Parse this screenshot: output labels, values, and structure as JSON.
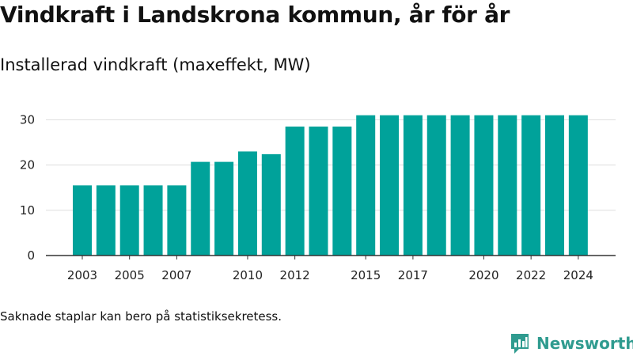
{
  "title": "Vindkraft i Landskrona kommun, år för år",
  "subtitle": "Installerad vindkraft (maxeffekt, MW)",
  "footnote": "Saknade staplar kan bero på statistiksekretess.",
  "brand": {
    "name": "Newsworthy",
    "icon": "newsworthy-logo-icon"
  },
  "colors": {
    "bar": "#00a29a",
    "grid": "#dddddd",
    "axis": "#333333",
    "brand": "#2f9b8f"
  },
  "chart_data": {
    "type": "bar",
    "x": [
      2003,
      2004,
      2005,
      2006,
      2007,
      2008,
      2009,
      2010,
      2011,
      2012,
      2013,
      2014,
      2015,
      2016,
      2017,
      2018,
      2019,
      2020,
      2021,
      2022,
      2023,
      2024
    ],
    "values": [
      15.5,
      15.5,
      15.5,
      15.5,
      15.5,
      20.7,
      20.7,
      23,
      22.4,
      28.5,
      28.5,
      28.5,
      31,
      31,
      31,
      31,
      31,
      31,
      31,
      31,
      31,
      31
    ],
    "x_tick_labels": [
      "2003",
      "2005",
      "2007",
      "2010",
      "2012",
      "2015",
      "2017",
      "2020",
      "2022",
      "2024"
    ],
    "y_ticks": [
      0,
      10,
      20,
      30
    ],
    "ylim": [
      0,
      34
    ],
    "grid": true,
    "xlabel": "",
    "ylabel": ""
  }
}
